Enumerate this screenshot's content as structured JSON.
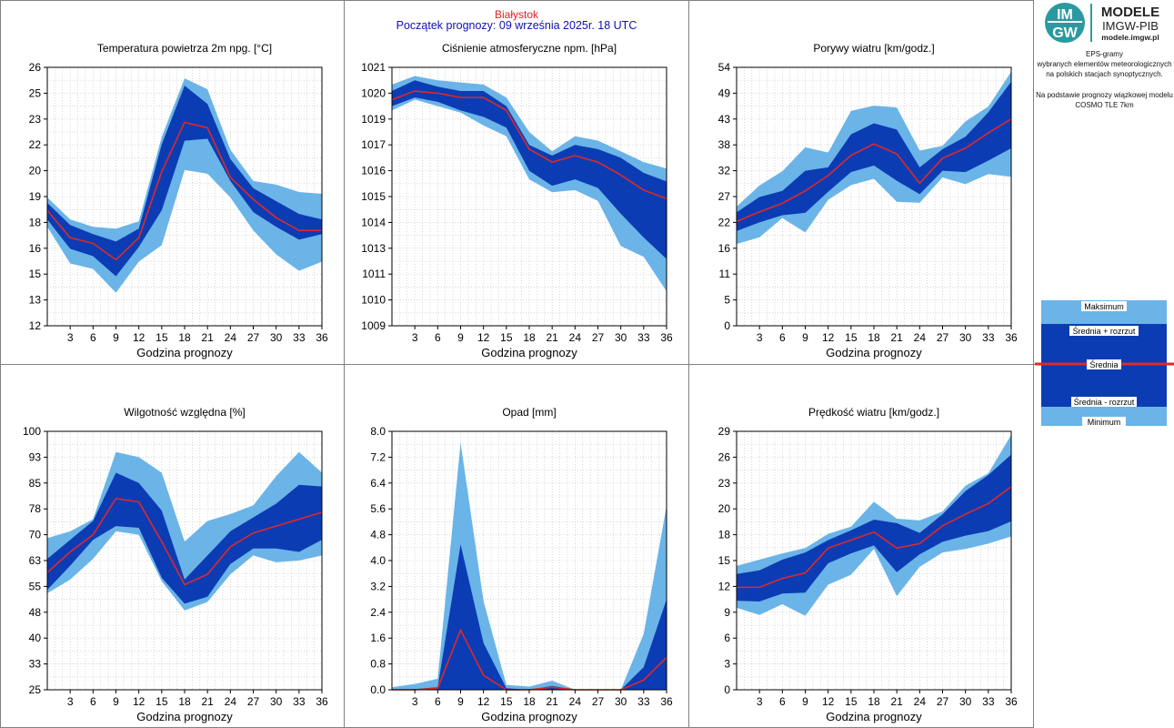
{
  "header": {
    "station": "Białystok",
    "forecast_start": "Początek prognozy: 09 września 2025r. 18 UTC"
  },
  "logo": {
    "badge_top": "IM",
    "badge_bottom": "GW",
    "title": "MODELE",
    "subtitle": "IMGW-PIB",
    "url": "modele.imgw.pl"
  },
  "side_text": {
    "line1": "EPS-gramy",
    "line2": "wybranych elementów meteorologicznych",
    "line3": "na polskich stacjach  synoptycznych.",
    "line4": "Na podstawie prognozy wiązkowej modelu",
    "line5": "COSMO TLE 7km"
  },
  "legend": {
    "max": "Maksimum",
    "mean_plus": "Średnia + rozrzut",
    "mean": "Średnia",
    "mean_minus": "Średnia - rozrzut",
    "min": "Minimum"
  },
  "colors": {
    "outer_band": "#6ab4e8",
    "inner_band": "#0c3cb4",
    "mean_line": "#e02828",
    "grid": "#c0c0c0"
  },
  "chart_data": [
    {
      "id": "temperature",
      "type": "area",
      "title": "Temperatura powietrza 2m npg. [°C]",
      "xlabel": "Godzina prognozy",
      "xticks": [
        "3",
        "6",
        "9",
        "12",
        "15",
        "18",
        "21",
        "24",
        "27",
        "30",
        "33",
        "36"
      ],
      "yticks": [
        "12",
        "13",
        "15",
        "16",
        "18",
        "19",
        "20",
        "22",
        "23",
        "25",
        "26"
      ],
      "ylim": [
        11.9,
        26
      ],
      "x": [
        0,
        3,
        6,
        9,
        12,
        15,
        18,
        21,
        24,
        27,
        30,
        33,
        36
      ],
      "max": [
        18.9,
        17.7,
        17.3,
        17.2,
        17.6,
        22.2,
        25.4,
        24.8,
        21.5,
        19.8,
        19.6,
        19.2,
        19.1
      ],
      "mean_plus": [
        18.6,
        17.4,
        16.9,
        16.5,
        17.2,
        21.8,
        25.0,
        24.0,
        21.0,
        19.4,
        18.7,
        18.0,
        17.7
      ],
      "mean": [
        18.2,
        16.7,
        16.4,
        15.5,
        16.7,
        20.3,
        23.0,
        22.7,
        20.0,
        18.8,
        17.8,
        17.1,
        17.1
      ],
      "mean_minus": [
        17.7,
        16.1,
        15.7,
        14.6,
        16.2,
        18.2,
        22.0,
        22.1,
        19.8,
        18.1,
        17.3,
        16.6,
        16.9
      ],
      "min": [
        17.3,
        15.3,
        15.0,
        13.7,
        15.4,
        16.3,
        20.4,
        20.2,
        18.9,
        17.1,
        15.8,
        14.9,
        15.4
      ]
    },
    {
      "id": "pressure",
      "type": "area",
      "title": "Ciśnienie atmosferyczne npm. [hPa]",
      "xlabel": "Godzina prognozy",
      "xticks": [
        "3",
        "6",
        "9",
        "12",
        "15",
        "18",
        "21",
        "24",
        "27",
        "30",
        "33",
        "36"
      ],
      "yticks": [
        "1009",
        "1010",
        "1011",
        "1013",
        "1014",
        "1015",
        "1016",
        "1017",
        "1019",
        "1020",
        "1021"
      ],
      "ylim": [
        1009,
        1021
      ],
      "x": [
        0,
        3,
        6,
        9,
        12,
        15,
        18,
        21,
        24,
        27,
        30,
        33,
        36
      ],
      "max": [
        1020.2,
        1020.6,
        1020.4,
        1020.3,
        1020.2,
        1019.6,
        1018.0,
        1017.1,
        1017.8,
        1017.6,
        1017.1,
        1016.6,
        1016.3
      ],
      "mean_plus": [
        1019.9,
        1020.4,
        1020.1,
        1019.9,
        1019.9,
        1019.2,
        1017.4,
        1016.9,
        1017.4,
        1017.2,
        1016.8,
        1016.1,
        1015.7
      ],
      "mean": [
        1019.5,
        1019.9,
        1019.8,
        1019.6,
        1019.6,
        1019.0,
        1017.2,
        1016.6,
        1016.9,
        1016.6,
        1016.0,
        1015.3,
        1014.9
      ],
      "mean_minus": [
        1019.2,
        1019.6,
        1019.4,
        1019.0,
        1018.7,
        1018.2,
        1016.2,
        1015.5,
        1015.8,
        1015.4,
        1014.2,
        1013.1,
        1012.1
      ],
      "min": [
        1019.0,
        1019.5,
        1019.2,
        1018.9,
        1018.3,
        1017.8,
        1015.8,
        1015.2,
        1015.3,
        1014.8,
        1012.7,
        1012.2,
        1010.6
      ]
    },
    {
      "id": "gusts",
      "type": "area",
      "title": "Porywy wiatru [km/godz.]",
      "xlabel": "Godzina prognozy",
      "xticks": [
        "3",
        "6",
        "9",
        "12",
        "15",
        "18",
        "21",
        "24",
        "27",
        "30",
        "33",
        "36"
      ],
      "yticks": [
        "0",
        "5",
        "11",
        "16",
        "22",
        "27",
        "32",
        "38",
        "43",
        "49",
        "54"
      ],
      "ylim": [
        0,
        54
      ],
      "x": [
        0,
        3,
        6,
        9,
        12,
        15,
        18,
        21,
        24,
        27,
        30,
        33,
        36
      ],
      "max": [
        24.9,
        29.3,
        32.3,
        37.3,
        36.2,
        44.9,
        46.0,
        45.6,
        36.6,
        37.6,
        42.7,
        45.8,
        53.1
      ],
      "mean_plus": [
        23.7,
        26.9,
        28.2,
        32.4,
        33.1,
        40.0,
        42.3,
        41.0,
        33.1,
        36.9,
        39.5,
        44.6,
        51.0
      ],
      "mean": [
        21.8,
        23.8,
        25.6,
        28.2,
        31.4,
        35.6,
        38.0,
        35.9,
        29.8,
        35.0,
        37.1,
        40.3,
        43.2
      ],
      "mean_minus": [
        19.8,
        21.6,
        23.1,
        23.6,
        28.0,
        32.1,
        33.5,
        30.3,
        27.5,
        32.4,
        32.1,
        34.5,
        37.1
      ],
      "min": [
        17.1,
        18.5,
        22.5,
        19.5,
        26.3,
        29.4,
        30.7,
        25.9,
        25.7,
        31.0,
        29.6,
        31.7,
        31.1
      ]
    },
    {
      "id": "humidity",
      "type": "area",
      "title": "Wilgotność względna [%]",
      "xlabel": "Godzina prognozy",
      "xticks": [
        "3",
        "6",
        "9",
        "12",
        "15",
        "18",
        "21",
        "24",
        "27",
        "30",
        "33",
        "36"
      ],
      "yticks": [
        "25",
        "33",
        "40",
        "48",
        "55",
        "63",
        "70",
        "78",
        "85",
        "93",
        "100"
      ],
      "ylim": [
        25,
        100
      ],
      "x": [
        0,
        3,
        6,
        9,
        12,
        15,
        18,
        21,
        24,
        27,
        30,
        33,
        36
      ],
      "max": [
        69.0,
        71.0,
        74.5,
        94.0,
        92.5,
        88.0,
        68.0,
        74.0,
        76.0,
        78.5,
        87.0,
        94.0,
        88.0
      ],
      "mean_plus": [
        63.0,
        68.5,
        74.0,
        88.0,
        85.0,
        77.0,
        57.0,
        64.0,
        71.0,
        75.0,
        79.0,
        84.5,
        84.0
      ],
      "mean": [
        59.0,
        65.0,
        70.0,
        80.5,
        79.5,
        68.0,
        55.5,
        58.5,
        66.5,
        70.5,
        72.5,
        74.5,
        76.5
      ],
      "mean_minus": [
        54.0,
        61.0,
        68.5,
        72.5,
        72.0,
        57.5,
        50.0,
        52.0,
        61.5,
        66.0,
        66.0,
        65.0,
        68.5
      ],
      "min": [
        53.0,
        57.0,
        63.0,
        71.0,
        70.0,
        56.5,
        48.0,
        50.5,
        58.5,
        64.0,
        62.0,
        62.5,
        64.0
      ]
    },
    {
      "id": "precipitation",
      "type": "area",
      "title": "Opad [mm]",
      "xlabel": "Godzina prognozy",
      "xticks": [
        "3",
        "6",
        "9",
        "12",
        "15",
        "18",
        "21",
        "24",
        "27",
        "30",
        "33",
        "36"
      ],
      "yticks": [
        "0.0",
        "0.8",
        "1.6",
        "2.4",
        "3.2",
        "4.0",
        "4.8",
        "5.6",
        "6.4",
        "7.2",
        "8.0"
      ],
      "ylim": [
        0,
        8
      ],
      "x": [
        0,
        3,
        6,
        9,
        12,
        15,
        18,
        21,
        24,
        27,
        30,
        33,
        36
      ],
      "max": [
        0.08,
        0.18,
        0.34,
        7.65,
        2.75,
        0.15,
        0.1,
        0.28,
        0.0,
        0.0,
        0.0,
        1.73,
        5.7
      ],
      "mean_plus": [
        0.0,
        0.02,
        0.08,
        4.5,
        1.45,
        0.05,
        0.0,
        0.12,
        0.0,
        0.0,
        0.0,
        0.7,
        2.8
      ],
      "mean": [
        0.0,
        0.0,
        0.05,
        1.85,
        0.45,
        0.0,
        0.0,
        0.08,
        0.0,
        0.0,
        0.0,
        0.3,
        1.0
      ],
      "mean_minus": [
        0.0,
        0.0,
        0.0,
        0.0,
        0.0,
        0.0,
        0.0,
        0.0,
        0.0,
        0.0,
        0.0,
        0.0,
        0.0
      ],
      "min": [
        0.0,
        0.0,
        0.0,
        0.0,
        0.0,
        0.0,
        0.0,
        0.0,
        0.0,
        0.0,
        0.0,
        0.0,
        0.0
      ]
    },
    {
      "id": "wind_speed",
      "type": "area",
      "title": "Prędkość wiatru [km/godz.]",
      "xlabel": "Godzina prognozy",
      "xticks": [
        "3",
        "6",
        "9",
        "12",
        "15",
        "18",
        "21",
        "24",
        "27",
        "30",
        "33",
        "36"
      ],
      "yticks": [
        "0",
        "3",
        "6",
        "9",
        "12",
        "15",
        "18",
        "20",
        "23",
        "26",
        "29"
      ],
      "ylim": [
        0,
        29
      ],
      "x": [
        0,
        3,
        6,
        9,
        12,
        15,
        18,
        21,
        24,
        27,
        30,
        33,
        36
      ],
      "max": [
        13.9,
        14.6,
        15.3,
        15.9,
        17.5,
        18.3,
        21.1,
        19.2,
        19.0,
        20.0,
        22.9,
        24.3,
        28.6
      ],
      "mean_plus": [
        13.0,
        13.4,
        14.6,
        15.4,
        16.8,
        17.9,
        19.1,
        18.7,
        17.6,
        19.7,
        22.3,
        24.1,
        26.4
      ],
      "mean": [
        11.5,
        11.5,
        12.5,
        13.1,
        15.9,
        16.8,
        17.7,
        15.9,
        16.4,
        18.4,
        19.7,
        20.9,
        22.8
      ],
      "mean_minus": [
        10.0,
        9.9,
        10.8,
        10.9,
        14.2,
        15.3,
        16.2,
        13.2,
        15.2,
        16.6,
        17.3,
        17.8,
        18.9
      ],
      "min": [
        9.2,
        8.4,
        9.6,
        8.3,
        11.8,
        12.9,
        15.8,
        10.5,
        13.8,
        15.4,
        15.8,
        16.4,
        17.2
      ]
    }
  ]
}
